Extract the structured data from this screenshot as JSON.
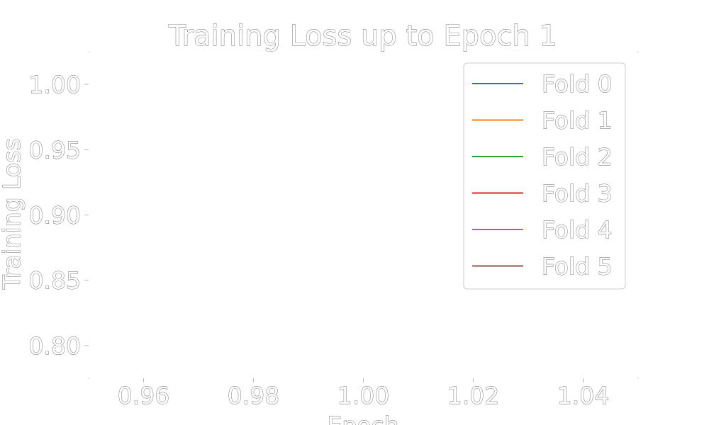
{
  "chart_data": {
    "type": "line",
    "title": "Training Loss up to Epoch 1",
    "xlabel": "Epoch",
    "ylabel": "Training Loss",
    "xlim": [
      0.95,
      1.05
    ],
    "ylim": [
      0.775,
      1.025
    ],
    "x_ticks": [
      0.96,
      0.98,
      1.0,
      1.02,
      1.04
    ],
    "x_tick_labels": [
      "0.96",
      "0.98",
      "1.00",
      "1.02",
      "1.04"
    ],
    "y_ticks": [
      0.8,
      0.85,
      0.9,
      0.95,
      1.0
    ],
    "y_tick_labels": [
      "0.80",
      "0.85",
      "0.90",
      "0.95",
      "1.00"
    ],
    "grid": false,
    "legend_position": "top-right",
    "series": [
      {
        "name": "Fold 0",
        "color": "#1f77b4",
        "x": [],
        "y": []
      },
      {
        "name": "Fold 1",
        "color": "#ff7f0e",
        "x": [],
        "y": []
      },
      {
        "name": "Fold 2",
        "color": "#2ca02c",
        "x": [],
        "y": []
      },
      {
        "name": "Fold 3",
        "color": "#d62728",
        "x": [],
        "y": []
      },
      {
        "name": "Fold 4",
        "color": "#9467bd",
        "x": [],
        "y": []
      },
      {
        "name": "Fold 5",
        "color": "#8c564b",
        "x": [],
        "y": []
      }
    ]
  }
}
